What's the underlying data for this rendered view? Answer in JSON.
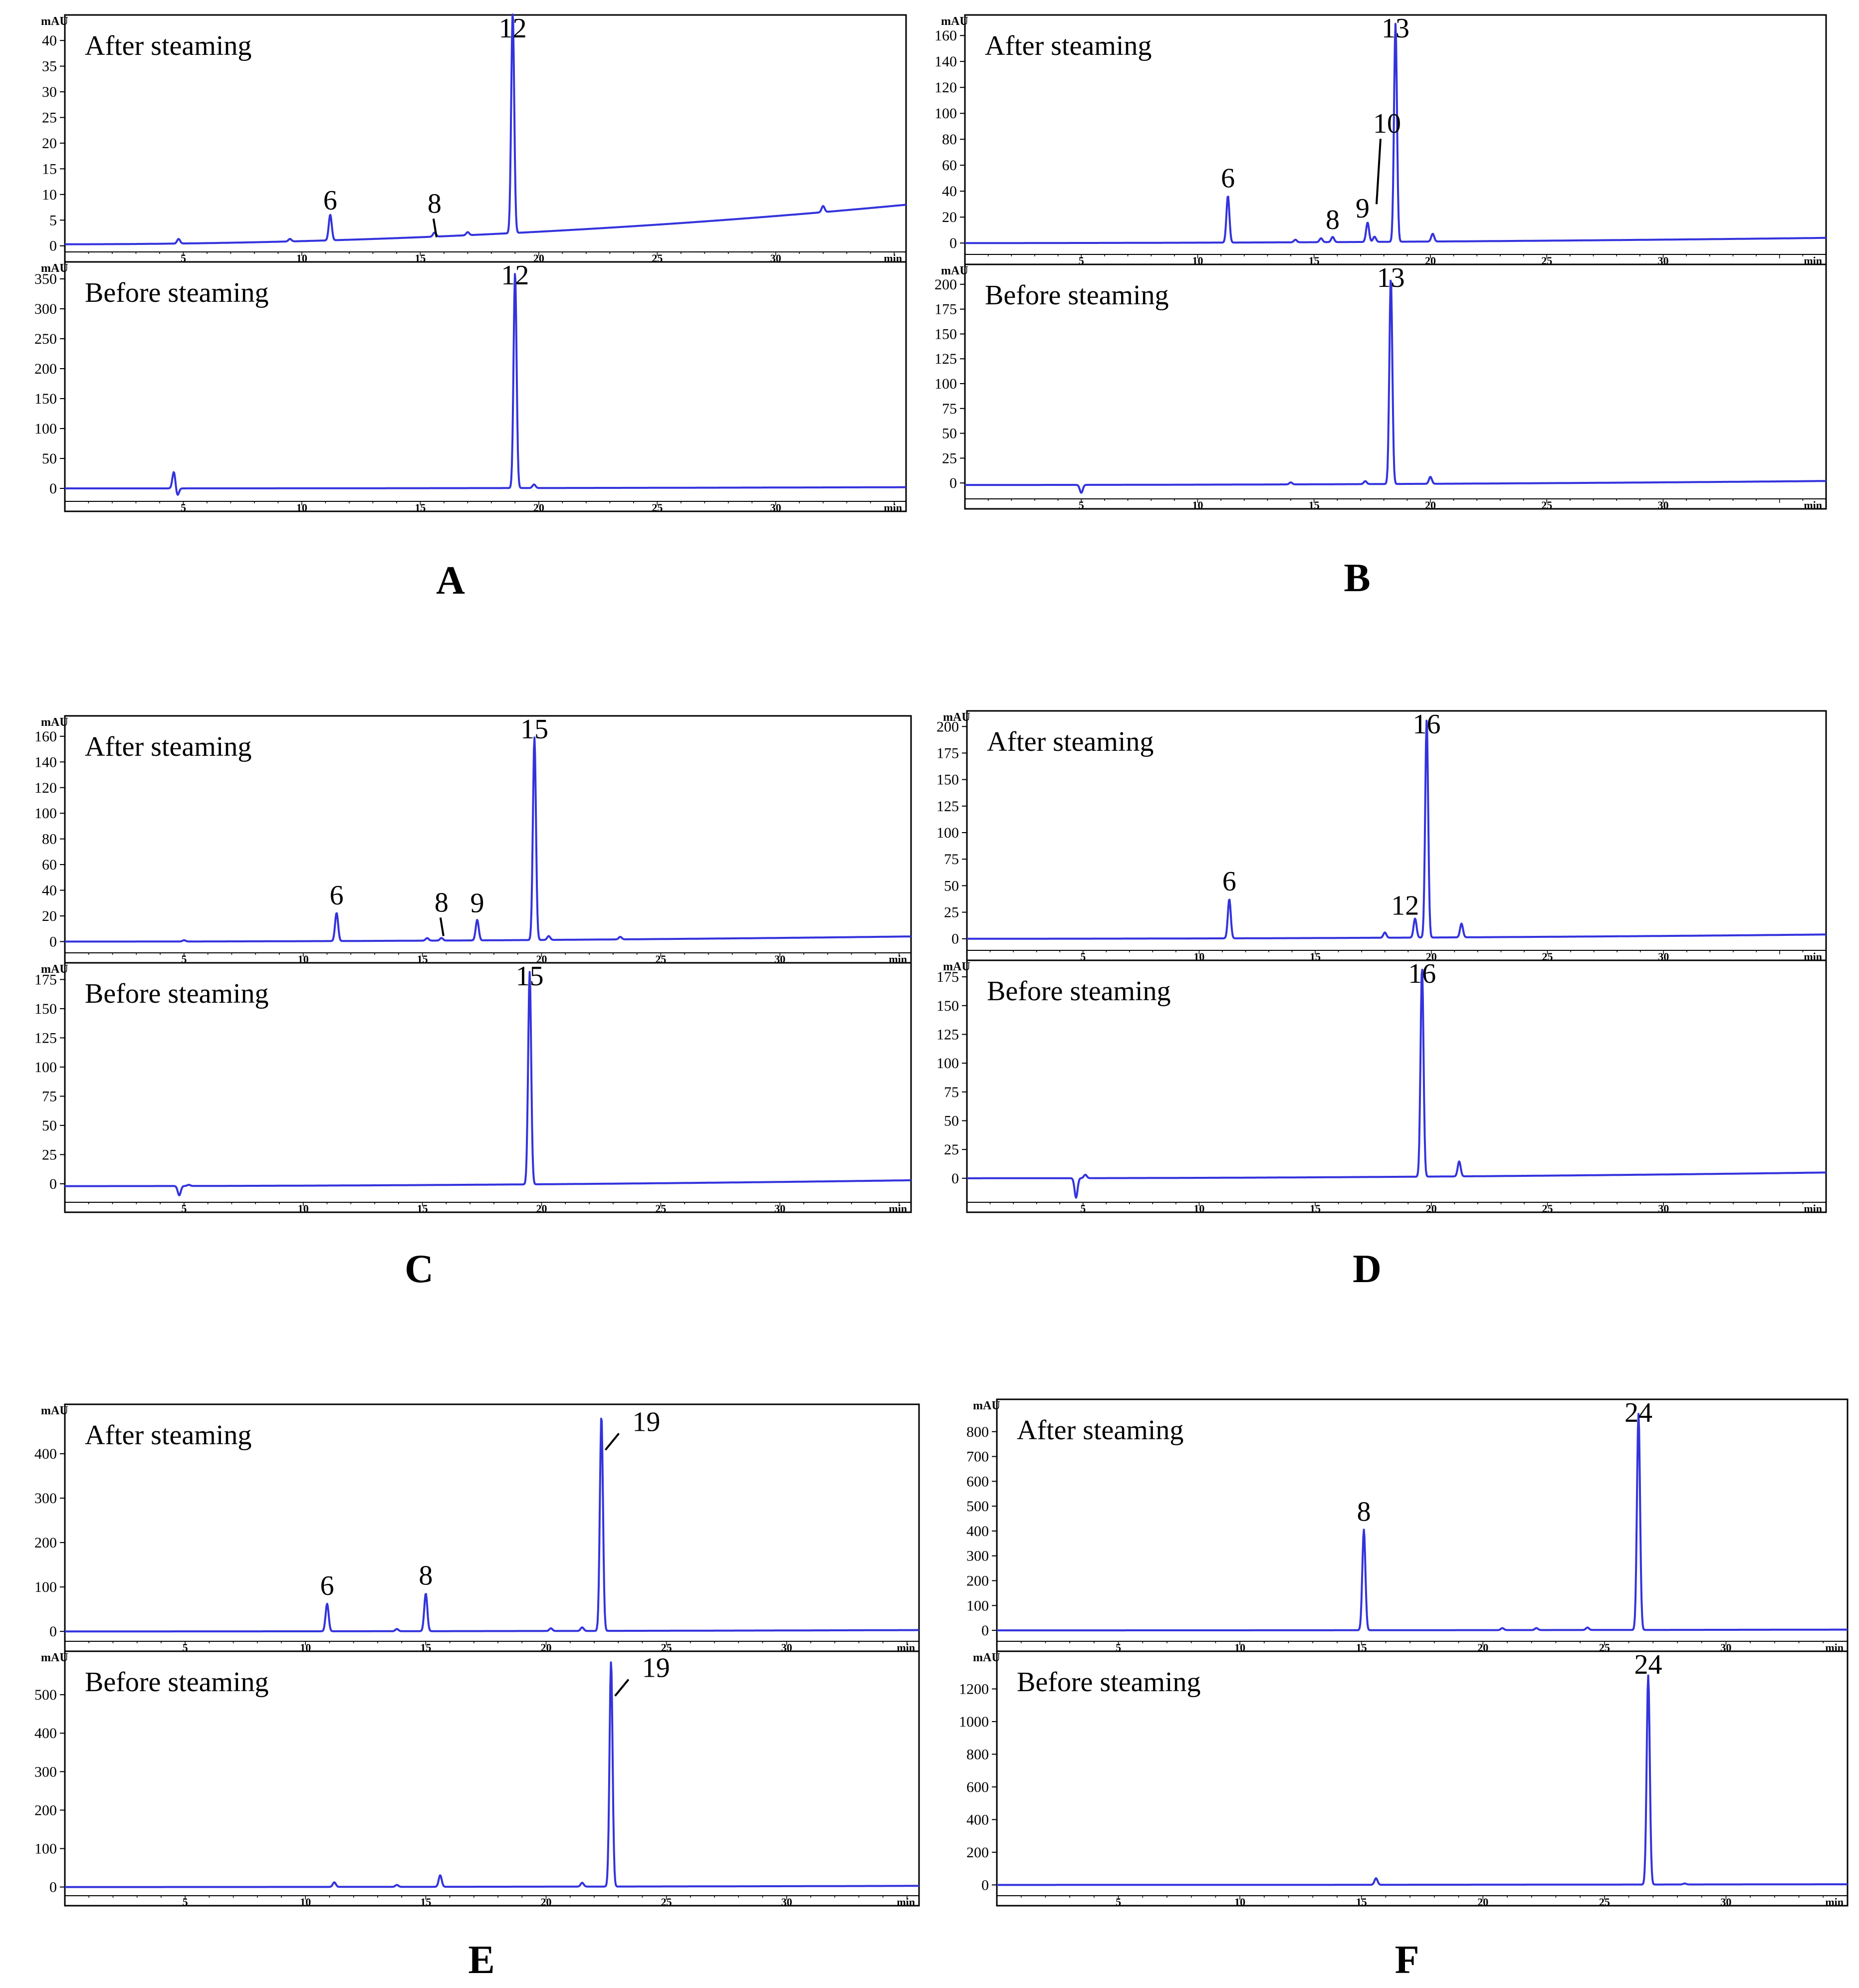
{
  "chart_data": [
    {
      "panel": "A",
      "type": "line",
      "charts": [
        {
          "title": "After steaming",
          "ylabel": "mAU",
          "yticks": [
            0,
            5,
            10,
            15,
            20,
            25,
            30,
            35,
            40
          ],
          "ylim": [
            -1,
            44
          ],
          "xticks": [
            5,
            10,
            15,
            20,
            25,
            30
          ],
          "xlabel": "min",
          "xlim": [
            0,
            35.5
          ],
          "baseline": [
            0.3,
            8.0
          ],
          "spikes": [
            [
              4.8,
              0.9
            ],
            [
              9.5,
              0.5
            ],
            [
              17,
              0.6
            ],
            [
              32,
              1.2
            ]
          ],
          "peaks": [
            {
              "label": "6",
              "x": 11.2,
              "y": 5
            },
            {
              "label": "8",
              "x": 15.6,
              "y": 0.8,
              "arrow": true
            },
            {
              "label": "12",
              "x": 18.9,
              "y": 43
            }
          ]
        },
        {
          "title": "Before steaming",
          "ylabel": "mAU",
          "yticks": [
            0,
            50,
            100,
            150,
            200,
            250,
            300,
            350
          ],
          "ylim": [
            -20,
            370
          ],
          "xticks": [
            5,
            10,
            15,
            20,
            25,
            30
          ],
          "xlabel": "min",
          "xlim": [
            0,
            35.5
          ],
          "baseline": [
            0,
            2
          ],
          "spikes": [
            [
              4.6,
              28
            ],
            [
              4.75,
              -12
            ],
            [
              19.8,
              6
            ]
          ],
          "peaks": [
            {
              "label": "12",
              "x": 19.0,
              "y": 360
            }
          ]
        }
      ]
    },
    {
      "panel": "B",
      "type": "line",
      "charts": [
        {
          "title": "After steaming",
          "ylabel": "mAU",
          "yticks": [
            0,
            20,
            40,
            60,
            80,
            100,
            120,
            140,
            160
          ],
          "ylim": [
            -8,
            172
          ],
          "xticks": [
            5,
            10,
            15,
            20,
            25,
            30
          ],
          "xlabel": "min",
          "xlim": [
            0,
            37
          ],
          "baseline": [
            0,
            4
          ],
          "spikes": [
            [
              14.2,
              2
            ],
            [
              15.3,
              3
            ],
            [
              20.1,
              6
            ]
          ],
          "peaks": [
            {
              "label": "6",
              "x": 11.3,
              "y": 36
            },
            {
              "label": "8",
              "x": 15.8,
              "y": 4
            },
            {
              "label": "9",
              "x": 17.3,
              "y": 15
            },
            {
              "label": "10",
              "x": 17.6,
              "y": 4,
              "arrow": true
            },
            {
              "label": "13",
              "x": 18.5,
              "y": 168
            }
          ]
        },
        {
          "title": "Before steaming",
          "ylabel": "mAU",
          "yticks": [
            0,
            25,
            50,
            75,
            100,
            125,
            150,
            175,
            200
          ],
          "ylim": [
            -15,
            215
          ],
          "xticks": [
            5,
            10,
            15,
            20,
            25,
            30
          ],
          "xlabel": "min",
          "xlim": [
            0,
            37
          ],
          "baseline": [
            -2,
            2
          ],
          "spikes": [
            [
              5.0,
              -8
            ],
            [
              14,
              2
            ],
            [
              17.2,
              3
            ],
            [
              20,
              7
            ]
          ],
          "peaks": [
            {
              "label": "13",
              "x": 18.3,
              "y": 208
            }
          ]
        }
      ]
    },
    {
      "panel": "C",
      "type": "line",
      "charts": [
        {
          "title": "After steaming",
          "ylabel": "mAU",
          "yticks": [
            0,
            20,
            40,
            60,
            80,
            100,
            120,
            140,
            160
          ],
          "ylim": [
            -8,
            172
          ],
          "xticks": [
            5,
            10,
            15,
            20,
            25,
            30
          ],
          "xlabel": "min",
          "xlim": [
            0,
            35.5
          ],
          "baseline": [
            0,
            4
          ],
          "spikes": [
            [
              5,
              1
            ],
            [
              15.2,
              2
            ],
            [
              20.3,
              3
            ],
            [
              23.3,
              2
            ]
          ],
          "peaks": [
            {
              "label": "6",
              "x": 11.4,
              "y": 22
            },
            {
              "label": "8",
              "x": 15.8,
              "y": 2,
              "arrow": true
            },
            {
              "label": "9",
              "x": 17.3,
              "y": 16
            },
            {
              "label": "15",
              "x": 19.7,
              "y": 158
            }
          ]
        },
        {
          "title": "Before steaming",
          "ylabel": "mAU",
          "yticks": [
            0,
            25,
            50,
            75,
            100,
            125,
            150,
            175
          ],
          "ylim": [
            -15,
            185
          ],
          "xticks": [
            5,
            10,
            15,
            20,
            25,
            30
          ],
          "xlabel": "min",
          "xlim": [
            0,
            35.5
          ],
          "baseline": [
            -2,
            3
          ],
          "spikes": [
            [
              4.8,
              -8
            ],
            [
              5.2,
              1
            ]
          ],
          "peaks": [
            {
              "label": "15",
              "x": 19.5,
              "y": 182
            }
          ]
        }
      ]
    },
    {
      "panel": "D",
      "type": "line",
      "charts": [
        {
          "title": "After steaming",
          "ylabel": "mAU",
          "yticks": [
            0,
            25,
            50,
            75,
            100,
            125,
            150,
            175,
            200
          ],
          "ylim": [
            -10,
            210
          ],
          "xticks": [
            5,
            10,
            15,
            20,
            25,
            30
          ],
          "xlabel": "min",
          "xlim": [
            0,
            37
          ],
          "baseline": [
            0,
            4
          ],
          "spikes": [
            [
              18,
              5
            ],
            [
              21.3,
              13
            ]
          ],
          "peaks": [
            {
              "label": "6",
              "x": 11.3,
              "y": 37
            },
            {
              "label": "12",
              "x": 19.3,
              "y": 18
            },
            {
              "label": "16",
              "x": 19.8,
              "y": 205
            }
          ]
        },
        {
          "title": "Before steaming",
          "ylabel": "mAU",
          "yticks": [
            0,
            25,
            50,
            75,
            100,
            125,
            150,
            175
          ],
          "ylim": [
            -20,
            185
          ],
          "xticks": [
            5,
            10,
            15,
            20,
            25,
            30
          ],
          "xlabel": "min",
          "xlim": [
            0,
            37
          ],
          "baseline": [
            0,
            5
          ],
          "spikes": [
            [
              4.7,
              -17
            ],
            [
              5.1,
              3
            ],
            [
              21.2,
              13
            ]
          ],
          "peaks": [
            {
              "label": "16",
              "x": 19.6,
              "y": 182
            }
          ]
        }
      ]
    },
    {
      "panel": "E",
      "type": "line",
      "charts": [
        {
          "title": "After steaming",
          "ylabel": "mAU",
          "yticks": [
            0,
            100,
            200,
            300,
            400
          ],
          "ylim": [
            -20,
            500
          ],
          "xticks": [
            5,
            10,
            15,
            20,
            25,
            30
          ],
          "xlabel": "min",
          "xlim": [
            0,
            35.5
          ],
          "baseline": [
            0,
            3
          ],
          "spikes": [
            [
              13.8,
              5
            ],
            [
              20.2,
              6
            ],
            [
              21.5,
              8
            ]
          ],
          "peaks": [
            {
              "label": "6",
              "x": 10.9,
              "y": 62
            },
            {
              "label": "8",
              "x": 15.0,
              "y": 85
            },
            {
              "label": "19",
              "x": 22.3,
              "y": 485,
              "arrow": true
            }
          ]
        },
        {
          "title": "Before steaming",
          "ylabel": "mAU",
          "yticks": [
            0,
            100,
            200,
            300,
            400,
            500
          ],
          "ylim": [
            -20,
            600
          ],
          "xticks": [
            5,
            10,
            15,
            20,
            25,
            30
          ],
          "xlabel": "min",
          "xlim": [
            0,
            35.5
          ],
          "baseline": [
            0,
            3
          ],
          "spikes": [
            [
              11.2,
              12
            ],
            [
              13.8,
              5
            ],
            [
              15.6,
              30
            ],
            [
              21.5,
              10
            ]
          ],
          "peaks": [
            {
              "label": "19",
              "x": 22.7,
              "y": 585,
              "arrow": true
            }
          ]
        }
      ]
    },
    {
      "panel": "F",
      "type": "line",
      "charts": [
        {
          "title": "After steaming",
          "ylabel": "mAU",
          "yticks": [
            0,
            100,
            200,
            300,
            400,
            500,
            600,
            700,
            800
          ],
          "ylim": [
            -40,
            910
          ],
          "xticks": [
            5,
            10,
            15,
            20,
            25,
            30
          ],
          "xlabel": "min",
          "xlim": [
            0,
            35
          ],
          "baseline": [
            0,
            3
          ],
          "spikes": [
            [
              20.8,
              8
            ],
            [
              22.2,
              8
            ],
            [
              24.3,
              10
            ]
          ],
          "peaks": [
            {
              "label": "8",
              "x": 15.1,
              "y": 405
            },
            {
              "label": "24",
              "x": 26.4,
              "y": 870
            }
          ]
        },
        {
          "title": "Before steaming",
          "ylabel": "mAU",
          "yticks": [
            0,
            200,
            400,
            600,
            800,
            1000,
            1200
          ],
          "ylim": [
            -60,
            1400
          ],
          "xticks": [
            5,
            10,
            15,
            20,
            25,
            30
          ],
          "xlabel": "min",
          "xlim": [
            0,
            35
          ],
          "baseline": [
            0,
            4
          ],
          "spikes": [
            [
              15.6,
              40
            ],
            [
              28.3,
              6
            ]
          ],
          "peaks": [
            {
              "label": "24",
              "x": 26.8,
              "y": 1280
            }
          ]
        }
      ]
    }
  ]
}
